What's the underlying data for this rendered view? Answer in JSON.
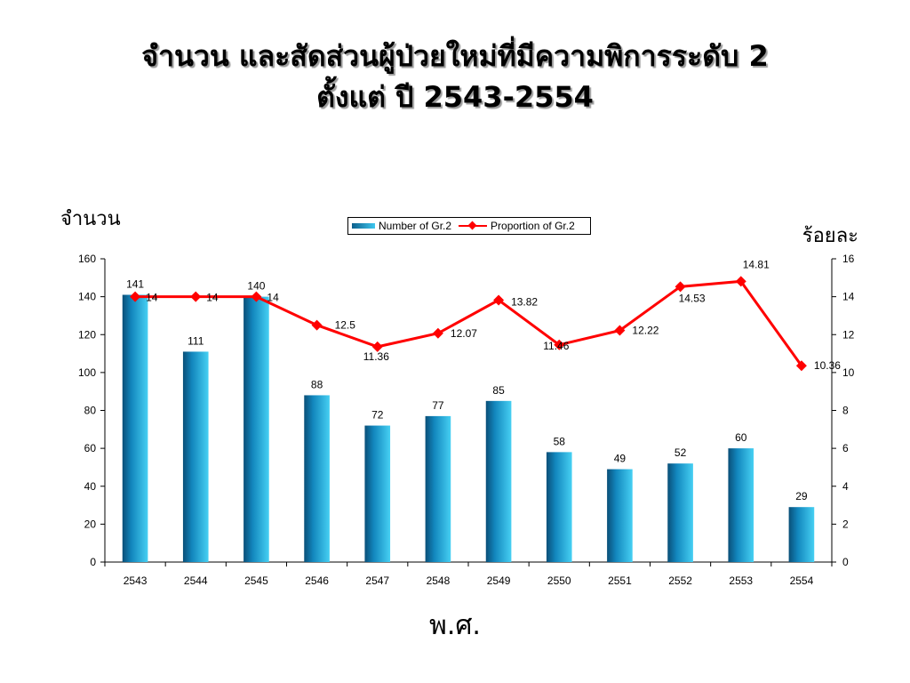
{
  "title_line1": "จำนวน และสัดส่วนผู้ป่วยใหม่ที่มีความพิการระดับ 2",
  "title_line2": "ตั้งแต่ ปี 2543-2554",
  "chart_data": {
    "type": "bar",
    "categories": [
      "2543",
      "2544",
      "2545",
      "2546",
      "2547",
      "2548",
      "2549",
      "2550",
      "2551",
      "2552",
      "2553",
      "2554"
    ],
    "series": [
      {
        "name": "Number of Gr.2",
        "type": "bar",
        "axis": "left",
        "values": [
          141,
          111,
          140,
          88,
          72,
          77,
          85,
          58,
          49,
          52,
          60,
          29
        ],
        "color": "#1a9fd6"
      },
      {
        "name": "Proportion of Gr.2",
        "type": "line",
        "axis": "right",
        "values": [
          14,
          14,
          14,
          12.5,
          11.36,
          12.07,
          13.82,
          11.46,
          12.22,
          14.53,
          14.81,
          10.36
        ],
        "color": "#ff0000"
      }
    ],
    "ylabel_left": "จำนวน",
    "ylabel_right": "ร้อยละ",
    "xlabel": "พ.ศ.",
    "ylim_left": [
      0,
      160
    ],
    "ylim_right": [
      0,
      16
    ],
    "yticks_left": [
      "0",
      "20",
      "40",
      "60",
      "80",
      "100",
      "120",
      "140",
      "160"
    ],
    "yticks_right": [
      "0",
      "2",
      "4",
      "6",
      "8",
      "10",
      "12",
      "14",
      "16"
    ],
    "grid": false,
    "legend_position": "top-center"
  }
}
